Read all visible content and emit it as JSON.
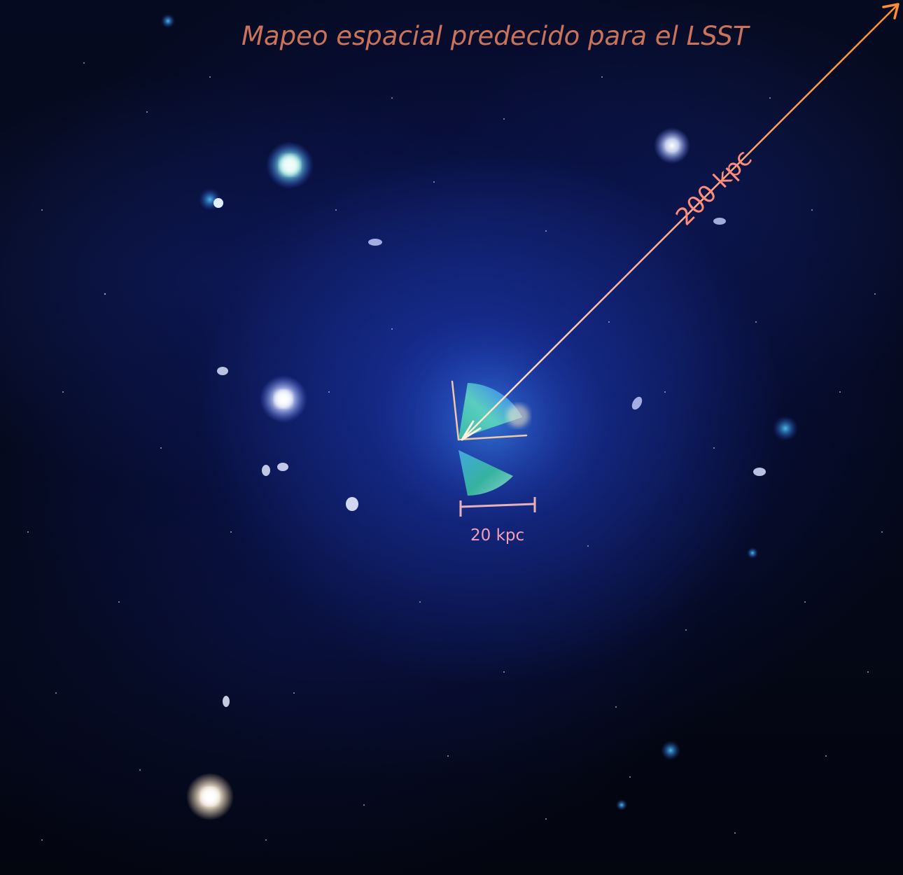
{
  "title": "Mapeo espacial predecido para el LSST",
  "labels": {
    "distance": "200 kpc",
    "scale_bar": "20 kpc"
  },
  "colors": {
    "title": "#c8735a",
    "distance_arrow": "#ff8c3a",
    "scale_bar": "#e8b0b8",
    "background": "#0a1450"
  }
}
